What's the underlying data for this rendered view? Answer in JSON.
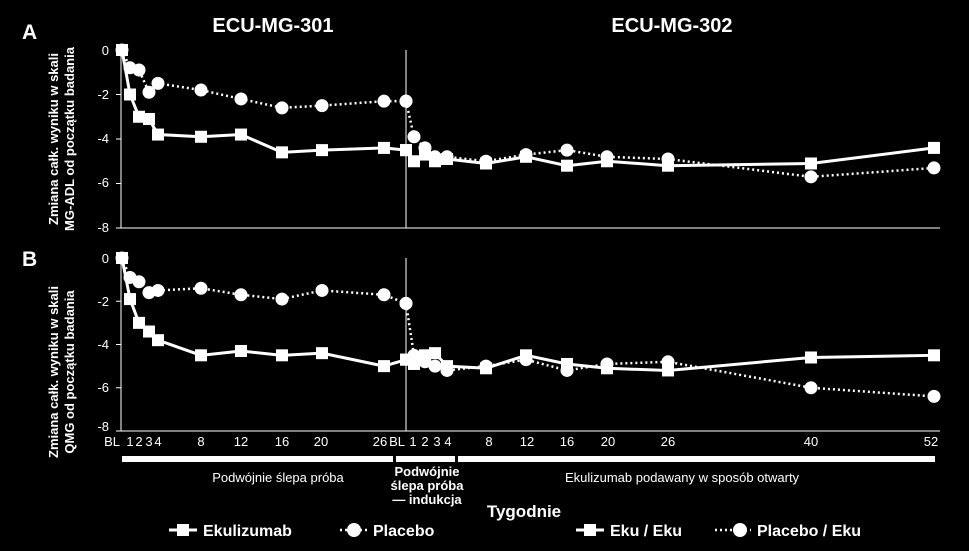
{
  "studies": [
    "ECU-MG-301",
    "ECU-MG-302"
  ],
  "x_title": "Tygodnie",
  "x_tick_labels": [
    "BL",
    "1",
    "2",
    "3",
    "4",
    "8",
    "12",
    "16",
    "20",
    "26",
    "BL",
    "1",
    "2",
    "3",
    "4",
    "8",
    "12",
    "16",
    "20",
    "26",
    "40",
    "52"
  ],
  "phases": {
    "double_blind": "Podwójnie ślepa próba",
    "induction": [
      "Podwójnie",
      "ślepa próba",
      "— indukcja"
    ],
    "open_label": "Ekulizumab podawany w sposób otwarty"
  },
  "legend": [
    "Ekulizumab",
    "Placebo",
    "Eku / Eku",
    "Placebo / Eku"
  ],
  "colors": {
    "background": "#000000",
    "foreground": "#ffffff"
  },
  "chart_data": [
    {
      "type": "line",
      "panel_label": "A",
      "ylabel": [
        "Zmiana całk. wyniku w skali",
        "MG-ADL od początku badania"
      ],
      "ylim": [
        -8,
        0
      ],
      "yticks": [
        "0",
        "-2",
        "-4",
        "-6",
        "-8"
      ],
      "series": [
        {
          "name": "Ekulizumab",
          "style": "solid-square",
          "x": [
            "BL",
            "1",
            "2",
            "3",
            "4",
            "8",
            "12",
            "16",
            "20",
            "26",
            "BL"
          ],
          "values": [
            0,
            -2.0,
            -3.0,
            -3.1,
            -3.8,
            -3.9,
            -3.8,
            -4.6,
            -4.5,
            -4.4,
            -4.5
          ]
        },
        {
          "name": "Placebo",
          "style": "dotted-circle",
          "x": [
            "BL",
            "1",
            "2",
            "3",
            "4",
            "8",
            "12",
            "16",
            "20",
            "26",
            "BL"
          ],
          "values": [
            0,
            -0.8,
            -0.9,
            -1.9,
            -1.5,
            -1.8,
            -2.2,
            -2.6,
            -2.5,
            -2.3,
            -2.3
          ]
        },
        {
          "name": "Eku / Eku",
          "style": "solid-square",
          "x": [
            "BL",
            "1",
            "2",
            "3",
            "4",
            "8",
            "12",
            "16",
            "20",
            "26",
            "40",
            "52"
          ],
          "values": [
            -4.5,
            -5.0,
            -4.7,
            -5.0,
            -4.9,
            -5.1,
            -4.8,
            -5.2,
            -5.0,
            -5.2,
            -5.1,
            -4.4
          ]
        },
        {
          "name": "Placebo / Eku",
          "style": "dotted-circle",
          "x": [
            "BL",
            "1",
            "2",
            "3",
            "4",
            "8",
            "12",
            "16",
            "20",
            "26",
            "40",
            "52"
          ],
          "values": [
            -2.3,
            -3.9,
            -4.4,
            -4.8,
            -4.8,
            -5.0,
            -4.7,
            -4.5,
            -4.8,
            -4.9,
            -5.7,
            -5.3
          ]
        }
      ]
    },
    {
      "type": "line",
      "panel_label": "B",
      "ylabel": [
        "Zmiana całk. wyniku w skali",
        "QMG od początku badania"
      ],
      "ylim": [
        -8,
        0
      ],
      "yticks": [
        "0",
        "-2",
        "-4",
        "-6",
        "-8"
      ],
      "series": [
        {
          "name": "Ekulizumab",
          "style": "solid-square",
          "x": [
            "BL",
            "1",
            "2",
            "3",
            "4",
            "8",
            "12",
            "16",
            "20",
            "26",
            "BL"
          ],
          "values": [
            0,
            -1.9,
            -3.0,
            -3.4,
            -3.8,
            -4.5,
            -4.3,
            -4.5,
            -4.4,
            -5.0,
            -4.7
          ]
        },
        {
          "name": "Placebo",
          "style": "dotted-circle",
          "x": [
            "BL",
            "1",
            "2",
            "3",
            "4",
            "8",
            "12",
            "16",
            "20",
            "26",
            "BL"
          ],
          "values": [
            0,
            -0.9,
            -1.1,
            -1.6,
            -1.5,
            -1.4,
            -1.7,
            -1.9,
            -1.5,
            -1.7,
            -2.1
          ]
        },
        {
          "name": "Eku / Eku",
          "style": "solid-square",
          "x": [
            "BL",
            "1",
            "2",
            "3",
            "4",
            "8",
            "12",
            "16",
            "20",
            "26",
            "40",
            "52"
          ],
          "values": [
            -4.7,
            -4.9,
            -4.5,
            -4.4,
            -5.0,
            -5.1,
            -4.5,
            -4.9,
            -5.1,
            -5.2,
            -4.6,
            -4.5
          ]
        },
        {
          "name": "Placebo / Eku",
          "style": "dotted-circle",
          "x": [
            "BL",
            "1",
            "2",
            "3",
            "4",
            "8",
            "12",
            "16",
            "20",
            "26",
            "40",
            "52"
          ],
          "values": [
            -2.1,
            -4.5,
            -4.8,
            -5.0,
            -5.2,
            -5.0,
            -4.7,
            -5.2,
            -4.9,
            -4.8,
            -6.0,
            -6.4
          ]
        }
      ]
    }
  ]
}
